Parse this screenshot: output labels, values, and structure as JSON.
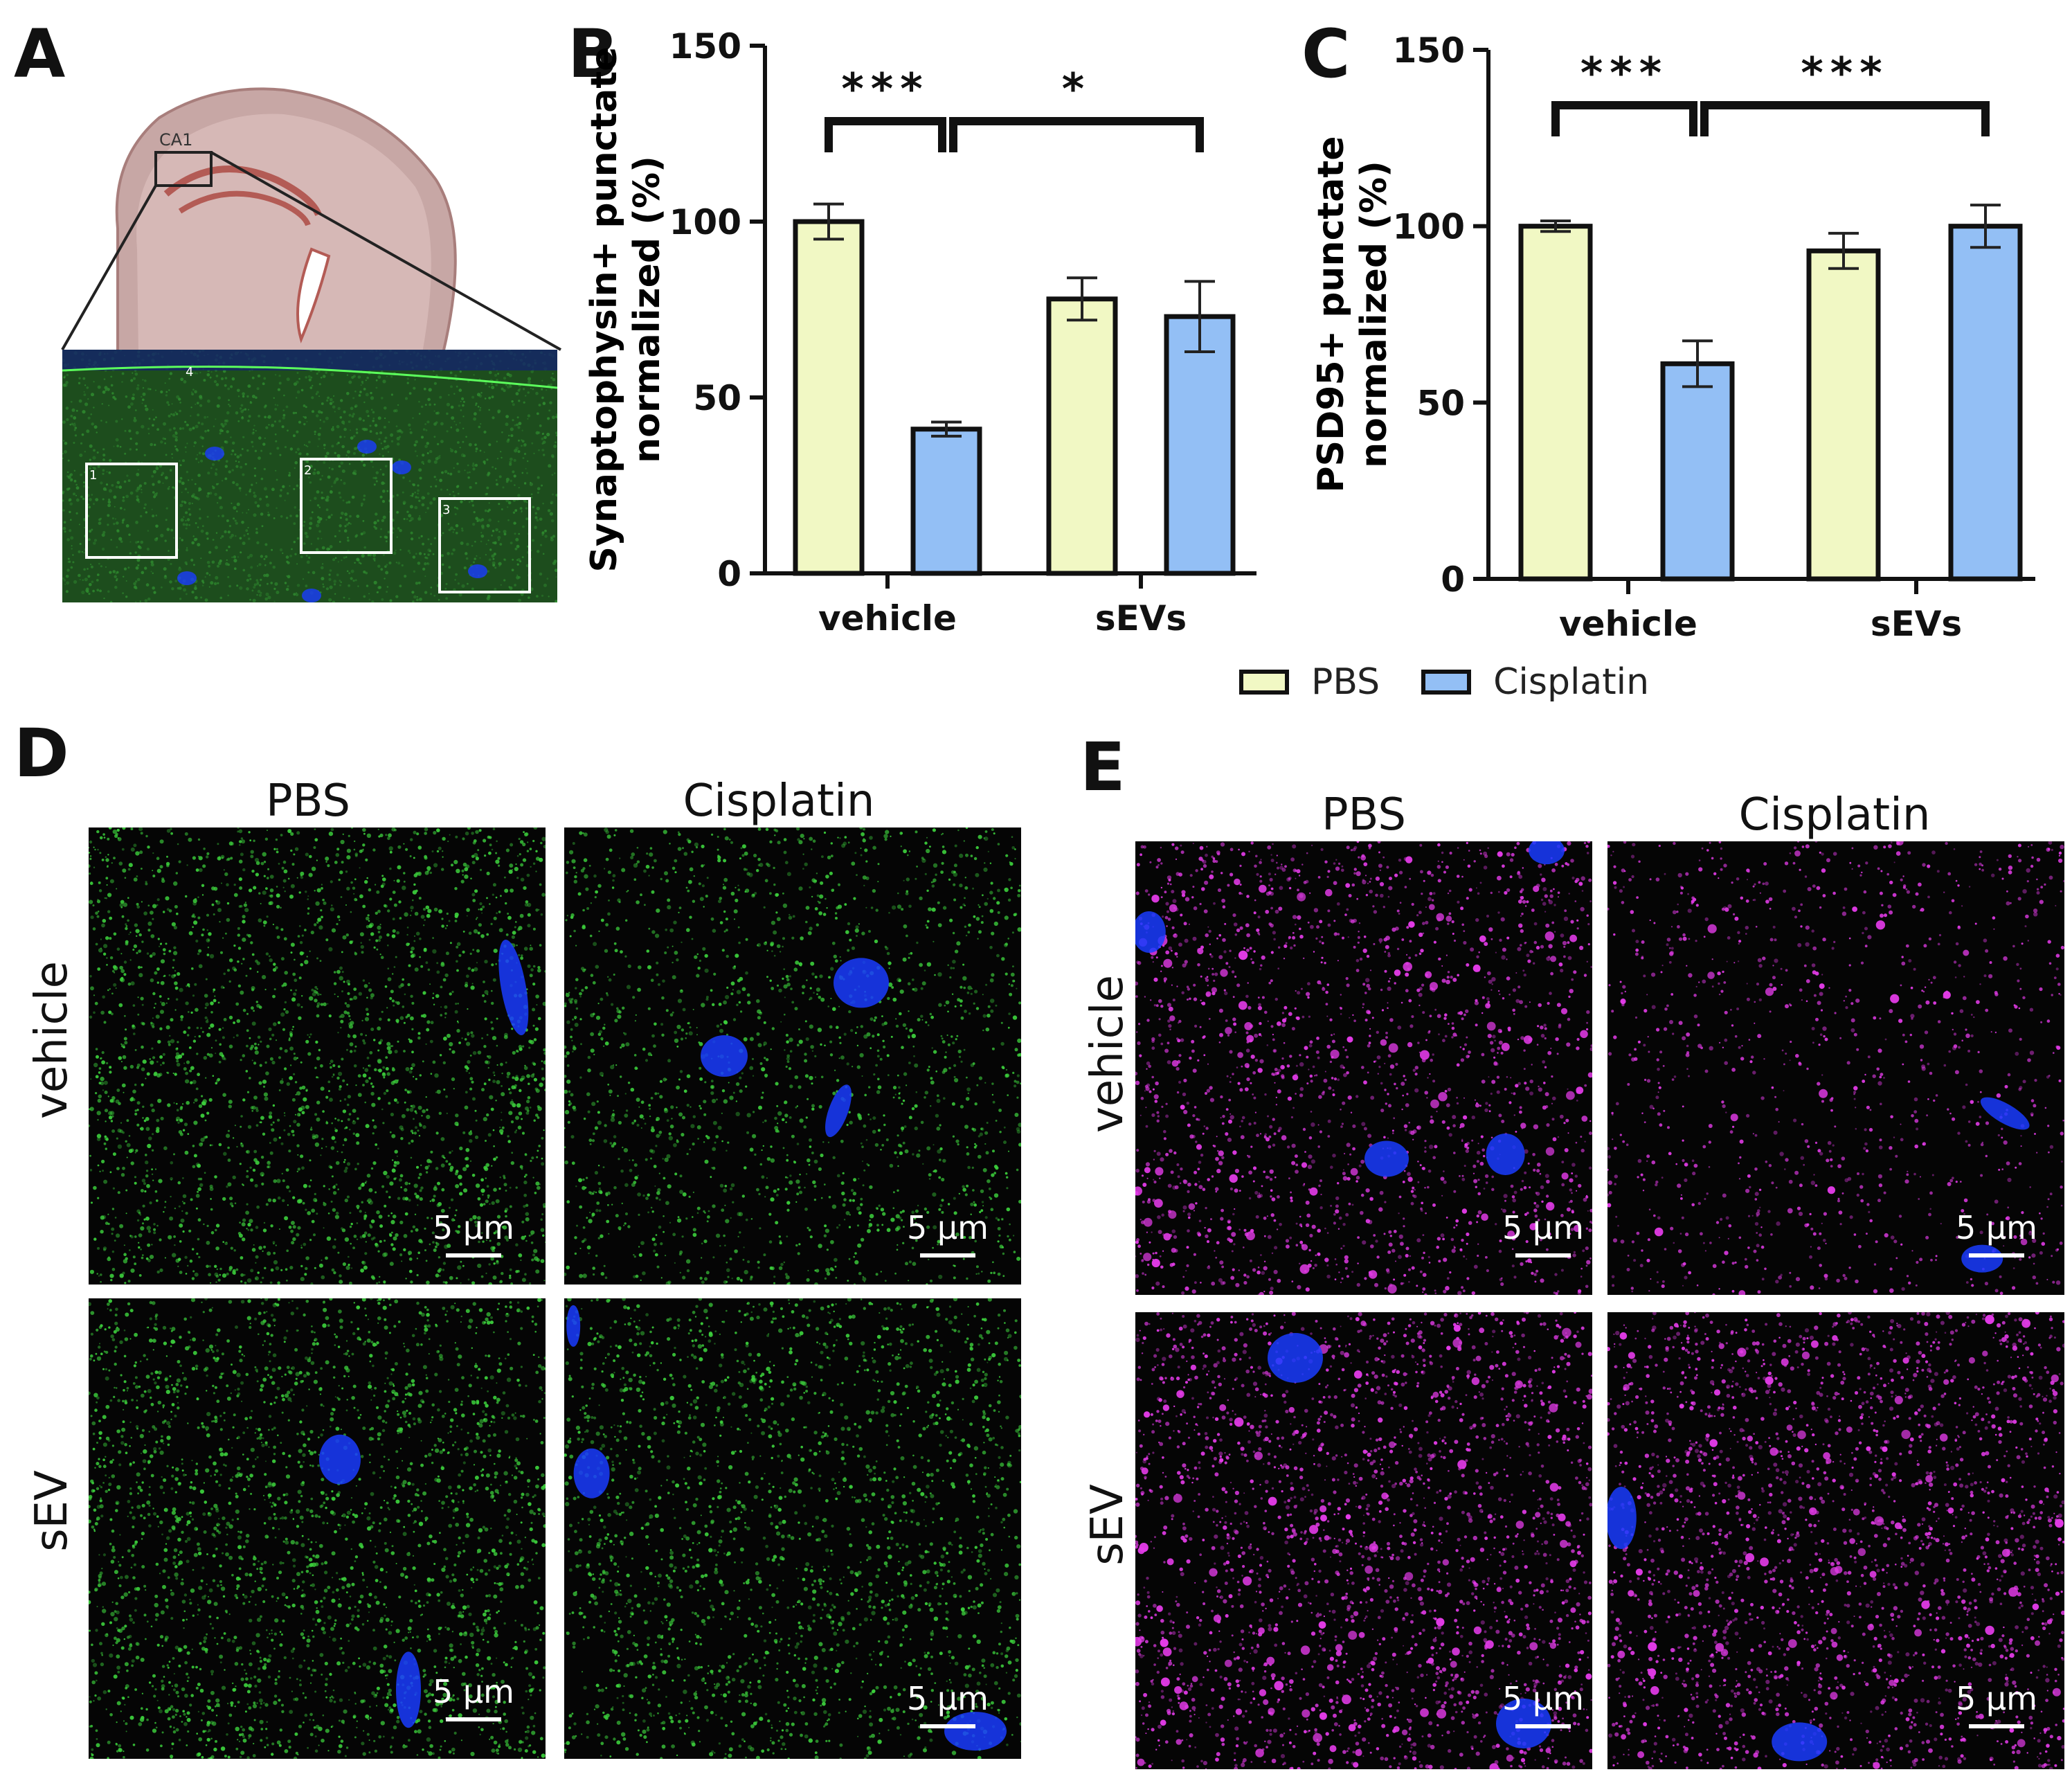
{
  "panels": {
    "A": "A",
    "B": "B",
    "C": "C",
    "D": "D",
    "E": "E"
  },
  "panel_a": {
    "region_label": "CA1",
    "roi_labels": [
      "1",
      "2",
      "3",
      "4"
    ]
  },
  "legend": [
    {
      "name": "PBS",
      "color": "#f1f8c4"
    },
    {
      "name": "Cisplatin",
      "color": "#93bff5"
    }
  ],
  "chart_data": [
    {
      "type": "bar",
      "panel": "B",
      "ylabel": "Synaptophysin+ punctate normalized (%)",
      "ylabel_lines": [
        "Synaptophysin+ punctate",
        "normalized (%)"
      ],
      "categories": [
        "vehicle",
        "sEVs"
      ],
      "ylim": [
        0,
        150
      ],
      "yticks": [
        "0",
        "50",
        "100",
        "150"
      ],
      "series": [
        {
          "name": "PBS",
          "values": [
            100,
            78
          ],
          "errors": [
            5,
            6
          ],
          "color": "#f1f8c4"
        },
        {
          "name": "Cisplatin",
          "values": [
            41,
            73
          ],
          "errors": [
            2,
            10
          ],
          "color": "#93bff5"
        }
      ],
      "significance": [
        "***",
        "*"
      ]
    },
    {
      "type": "bar",
      "panel": "C",
      "ylabel": "PSD95+ punctate normalized (%)",
      "ylabel_lines": [
        "PSD95+ punctate",
        "normalized (%)"
      ],
      "categories": [
        "vehicle",
        "sEVs"
      ],
      "ylim": [
        0,
        150
      ],
      "yticks": [
        "0",
        "50",
        "100",
        "150"
      ],
      "series": [
        {
          "name": "PBS",
          "values": [
            100,
            93
          ],
          "errors": [
            1.5,
            5
          ],
          "color": "#f1f8c4"
        },
        {
          "name": "Cisplatin",
          "values": [
            61,
            100
          ],
          "errors": [
            6.5,
            6
          ],
          "color": "#93bff5"
        }
      ],
      "significance": [
        "***",
        "***"
      ]
    }
  ],
  "panel_d": {
    "columns": [
      "PBS",
      "Cisplatin"
    ],
    "rows": [
      "vehicle",
      "sEV"
    ],
    "scale_label": "5 µm",
    "stain_color": "#3ccf3c"
  },
  "panel_e": {
    "columns": [
      "PBS",
      "Cisplatin"
    ],
    "rows": [
      "vehicle",
      "sEV"
    ],
    "scale_label": "5 µm",
    "stain_color": "#e33be8"
  }
}
